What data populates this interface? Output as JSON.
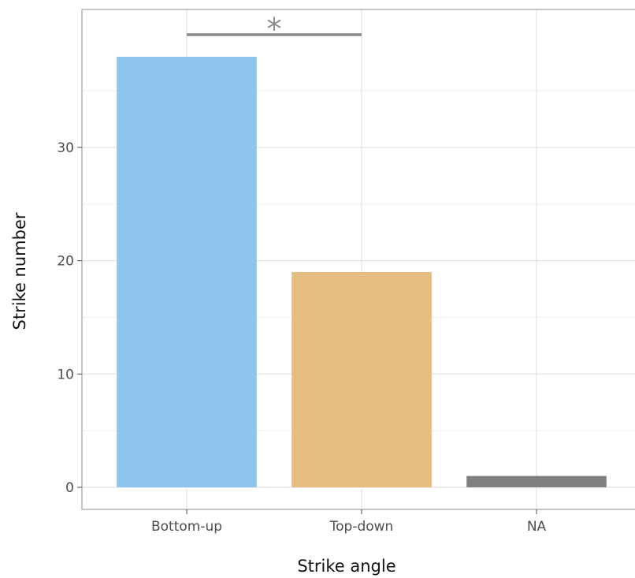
{
  "chart_data": {
    "type": "bar",
    "categories": [
      "Bottom-up",
      "Top-down",
      "NA"
    ],
    "values": [
      38,
      19,
      1
    ],
    "colors": [
      "#8ec5ec",
      "#e5bd7e",
      "#808080"
    ],
    "xlabel": "Strike angle",
    "ylabel": "Strike number",
    "ylim": [
      -1,
      42.5
    ],
    "yticks": [
      0,
      10,
      20,
      30
    ],
    "grid": true,
    "significance": {
      "from_category": "Bottom-up",
      "to_category": "Top-down",
      "y": 40,
      "label": "*",
      "color": "#8c8c8c"
    }
  }
}
